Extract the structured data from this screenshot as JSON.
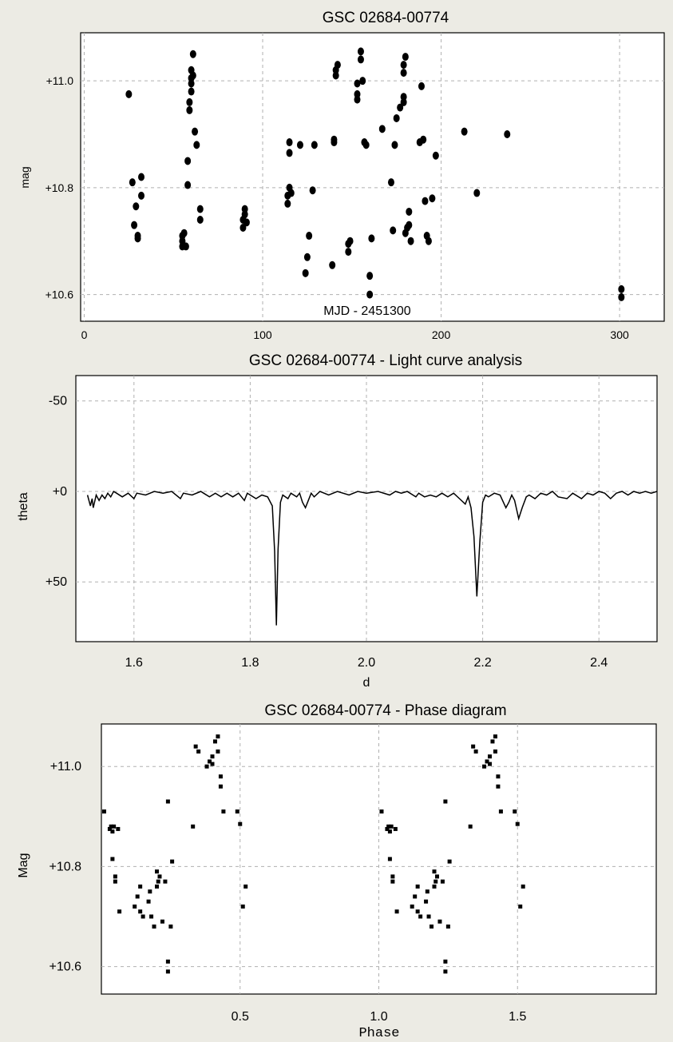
{
  "chart_data": [
    {
      "type": "scatter",
      "title": "GSC 02684-00774",
      "xlabel": "MJD - 2451300",
      "ylabel": "mag",
      "xlim": [
        -2,
        325
      ],
      "ylim": [
        11.09,
        10.55
      ],
      "y_inverted": true,
      "grid": true,
      "xticks": [
        0,
        100,
        200,
        300
      ],
      "yticks": [
        10.6,
        10.8,
        11.0
      ],
      "ytick_labels": [
        "+10.6",
        "+10.8",
        "+11.0"
      ],
      "series": [
        {
          "marker": "circle",
          "color": "#000000",
          "points": [
            [
              25,
              10.975
            ],
            [
              27,
              10.81
            ],
            [
              28,
              10.73
            ],
            [
              29,
              10.765
            ],
            [
              30,
              10.71
            ],
            [
              30,
              10.705
            ],
            [
              32,
              10.785
            ],
            [
              32,
              10.82
            ],
            [
              55,
              10.69
            ],
            [
              55,
              10.7
            ],
            [
              55,
              10.71
            ],
            [
              56,
              10.715
            ],
            [
              57,
              10.69
            ],
            [
              58,
              10.805
            ],
            [
              58,
              10.85
            ],
            [
              59,
              10.945
            ],
            [
              59,
              10.96
            ],
            [
              60,
              10.98
            ],
            [
              60,
              10.995
            ],
            [
              60,
              11.005
            ],
            [
              60,
              11.02
            ],
            [
              61,
              11.05
            ],
            [
              61,
              11.01
            ],
            [
              62,
              10.905
            ],
            [
              63,
              10.88
            ],
            [
              65,
              10.74
            ],
            [
              65,
              10.76
            ],
            [
              89,
              10.725
            ],
            [
              89,
              10.74
            ],
            [
              90,
              10.75
            ],
            [
              90,
              10.76
            ],
            [
              91,
              10.735
            ],
            [
              114,
              10.77
            ],
            [
              114,
              10.785
            ],
            [
              115,
              10.8
            ],
            [
              115,
              10.865
            ],
            [
              115,
              10.885
            ],
            [
              116,
              10.79
            ],
            [
              121,
              10.88
            ],
            [
              124,
              10.64
            ],
            [
              125,
              10.67
            ],
            [
              126,
              10.71
            ],
            [
              128,
              10.795
            ],
            [
              129,
              10.88
            ],
            [
              139,
              10.655
            ],
            [
              140,
              10.885
            ],
            [
              140,
              10.89
            ],
            [
              141,
              11.02
            ],
            [
              141,
              11.01
            ],
            [
              142,
              11.03
            ],
            [
              148,
              10.68
            ],
            [
              148,
              10.695
            ],
            [
              149,
              10.7
            ],
            [
              153,
              10.965
            ],
            [
              153,
              10.975
            ],
            [
              153,
              10.995
            ],
            [
              155,
              11.04
            ],
            [
              155,
              11.055
            ],
            [
              156,
              11.0
            ],
            [
              157,
              10.885
            ],
            [
              158,
              10.88
            ],
            [
              160,
              10.6
            ],
            [
              160,
              10.635
            ],
            [
              161,
              10.705
            ],
            [
              167,
              10.91
            ],
            [
              172,
              10.81
            ],
            [
              173,
              10.72
            ],
            [
              174,
              10.88
            ],
            [
              175,
              10.93
            ],
            [
              177,
              10.95
            ],
            [
              179,
              10.96
            ],
            [
              179,
              10.97
            ],
            [
              179,
              11.015
            ],
            [
              179,
              11.03
            ],
            [
              180,
              11.045
            ],
            [
              180,
              10.715
            ],
            [
              181,
              10.725
            ],
            [
              182,
              10.73
            ],
            [
              182,
              10.755
            ],
            [
              183,
              10.7
            ],
            [
              188,
              10.885
            ],
            [
              189,
              10.99
            ],
            [
              190,
              10.89
            ],
            [
              191,
              10.775
            ],
            [
              192,
              10.71
            ],
            [
              193,
              10.7
            ],
            [
              195,
              10.78
            ],
            [
              197,
              10.86
            ],
            [
              213,
              10.905
            ],
            [
              220,
              10.79
            ],
            [
              237,
              10.9
            ],
            [
              301,
              10.595
            ],
            [
              301,
              10.61
            ]
          ]
        }
      ]
    },
    {
      "type": "line",
      "title": "GSC 02684-00774 - Light curve analysis",
      "xlabel": "d",
      "ylabel": "theta",
      "xlim": [
        1.5,
        2.5
      ],
      "ylim": [
        -64,
        83
      ],
      "grid": true,
      "xticks": [
        1.6,
        1.8,
        2.0,
        2.2,
        2.4
      ],
      "xtick_labels": [
        "1.6",
        "1.8",
        "2.0",
        "2.2",
        "2.4"
      ],
      "yticks": [
        -50,
        0,
        50
      ],
      "ytick_labels": [
        "-50",
        "+0",
        "+50"
      ],
      "series": [
        {
          "color": "#000000",
          "points": [
            [
              1.52,
              2
            ],
            [
              1.525,
              8
            ],
            [
              1.528,
              4
            ],
            [
              1.53,
              9
            ],
            [
              1.535,
              2
            ],
            [
              1.54,
              5
            ],
            [
              1.545,
              2
            ],
            [
              1.55,
              4
            ],
            [
              1.555,
              1
            ],
            [
              1.56,
              3
            ],
            [
              1.565,
              0
            ],
            [
              1.57,
              1
            ],
            [
              1.58,
              3
            ],
            [
              1.59,
              1
            ],
            [
              1.6,
              4
            ],
            [
              1.605,
              1
            ],
            [
              1.62,
              2
            ],
            [
              1.635,
              0
            ],
            [
              1.65,
              1
            ],
            [
              1.665,
              0
            ],
            [
              1.68,
              4
            ],
            [
              1.685,
              1
            ],
            [
              1.7,
              2
            ],
            [
              1.715,
              0
            ],
            [
              1.73,
              3
            ],
            [
              1.74,
              1
            ],
            [
              1.75,
              3
            ],
            [
              1.76,
              1
            ],
            [
              1.77,
              3
            ],
            [
              1.78,
              1
            ],
            [
              1.79,
              5
            ],
            [
              1.795,
              1
            ],
            [
              1.81,
              4
            ],
            [
              1.82,
              2
            ],
            [
              1.83,
              3
            ],
            [
              1.838,
              8
            ],
            [
              1.842,
              33
            ],
            [
              1.845,
              74
            ],
            [
              1.848,
              32
            ],
            [
              1.852,
              6
            ],
            [
              1.856,
              2
            ],
            [
              1.865,
              4
            ],
            [
              1.87,
              1
            ],
            [
              1.88,
              3
            ],
            [
              1.885,
              1
            ],
            [
              1.89,
              6
            ],
            [
              1.895,
              9
            ],
            [
              1.9,
              5
            ],
            [
              1.905,
              1
            ],
            [
              1.91,
              3
            ],
            [
              1.92,
              0
            ],
            [
              1.935,
              2
            ],
            [
              1.95,
              0
            ],
            [
              1.97,
              2
            ],
            [
              1.985,
              0
            ],
            [
              2.0,
              1
            ],
            [
              2.02,
              0
            ],
            [
              2.04,
              2
            ],
            [
              2.05,
              0
            ],
            [
              2.06,
              1
            ],
            [
              2.07,
              0
            ],
            [
              2.085,
              3
            ],
            [
              2.09,
              1
            ],
            [
              2.1,
              3
            ],
            [
              2.11,
              2
            ],
            [
              2.12,
              3
            ],
            [
              2.13,
              1
            ],
            [
              2.14,
              3
            ],
            [
              2.15,
              1
            ],
            [
              2.16,
              4
            ],
            [
              2.17,
              7
            ],
            [
              2.175,
              3
            ],
            [
              2.18,
              9
            ],
            [
              2.185,
              25
            ],
            [
              2.19,
              58
            ],
            [
              2.195,
              28
            ],
            [
              2.2,
              6
            ],
            [
              2.205,
              2
            ],
            [
              2.21,
              3
            ],
            [
              2.22,
              1
            ],
            [
              2.23,
              2
            ],
            [
              2.24,
              9
            ],
            [
              2.245,
              6
            ],
            [
              2.25,
              2
            ],
            [
              2.255,
              5
            ],
            [
              2.262,
              15
            ],
            [
              2.268,
              9
            ],
            [
              2.275,
              3
            ],
            [
              2.28,
              2
            ],
            [
              2.29,
              4
            ],
            [
              2.3,
              1
            ],
            [
              2.31,
              2
            ],
            [
              2.32,
              0
            ],
            [
              2.33,
              3
            ],
            [
              2.345,
              4
            ],
            [
              2.355,
              1
            ],
            [
              2.37,
              4
            ],
            [
              2.38,
              1
            ],
            [
              2.39,
              2
            ],
            [
              2.4,
              0
            ],
            [
              2.41,
              1
            ],
            [
              2.42,
              4
            ],
            [
              2.43,
              1
            ],
            [
              2.44,
              0
            ],
            [
              2.45,
              2
            ],
            [
              2.46,
              0
            ],
            [
              2.47,
              1
            ],
            [
              2.48,
              0
            ],
            [
              2.49,
              1
            ],
            [
              2.5,
              0
            ]
          ]
        }
      ]
    },
    {
      "type": "scatter",
      "title": "GSC 02684-00774 - Phase diagram",
      "xlabel": "Phase",
      "ylabel": "Mag",
      "xlim": [
        0.0,
        2.0
      ],
      "ylim": [
        11.085,
        10.545
      ],
      "y_inverted": true,
      "grid": true,
      "xticks": [
        0.5,
        1.0,
        1.5
      ],
      "xtick_labels": [
        "0.5",
        "1.0",
        "1.5"
      ],
      "yticks": [
        10.6,
        10.8,
        11.0
      ],
      "ytick_labels": [
        "+10.6",
        "+10.8",
        "+11.0"
      ],
      "series": [
        {
          "marker": "square",
          "color": "#000000",
          "points": [
            [
              0.01,
              10.91
            ],
            [
              0.03,
              10.875
            ],
            [
              0.035,
              10.88
            ],
            [
              0.04,
              10.87
            ],
            [
              0.045,
              10.88
            ],
            [
              0.05,
              10.77
            ],
            [
              0.05,
              10.78
            ],
            [
              0.06,
              10.875
            ],
            [
              0.065,
              10.71
            ],
            [
              0.04,
              10.815
            ],
            [
              0.12,
              10.72
            ],
            [
              0.13,
              10.74
            ],
            [
              0.14,
              10.71
            ],
            [
              0.15,
              10.7
            ],
            [
              0.14,
              10.76
            ],
            [
              0.17,
              10.73
            ],
            [
              0.175,
              10.75
            ],
            [
              0.18,
              10.7
            ],
            [
              0.19,
              10.68
            ],
            [
              0.2,
              10.76
            ],
            [
              0.205,
              10.77
            ],
            [
              0.21,
              10.78
            ],
            [
              0.22,
              10.69
            ],
            [
              0.23,
              10.77
            ],
            [
              0.24,
              10.59
            ],
            [
              0.24,
              10.61
            ],
            [
              0.25,
              10.68
            ],
            [
              0.255,
              10.81
            ],
            [
              0.24,
              10.93
            ],
            [
              0.2,
              10.79
            ],
            [
              0.33,
              10.88
            ],
            [
              0.34,
              11.04
            ],
            [
              0.35,
              11.03
            ],
            [
              0.38,
              11.0
            ],
            [
              0.39,
              11.01
            ],
            [
              0.4,
              11.005
            ],
            [
              0.4,
              11.02
            ],
            [
              0.41,
              11.05
            ],
            [
              0.42,
              11.03
            ],
            [
              0.43,
              10.96
            ],
            [
              0.43,
              10.98
            ],
            [
              0.44,
              10.91
            ],
            [
              0.42,
              11.06
            ],
            [
              0.49,
              10.91
            ],
            [
              0.5,
              10.885
            ],
            [
              0.51,
              10.72
            ],
            [
              0.52,
              10.76
            ]
          ]
        }
      ],
      "repeat_phase_offset": 1.0
    }
  ]
}
